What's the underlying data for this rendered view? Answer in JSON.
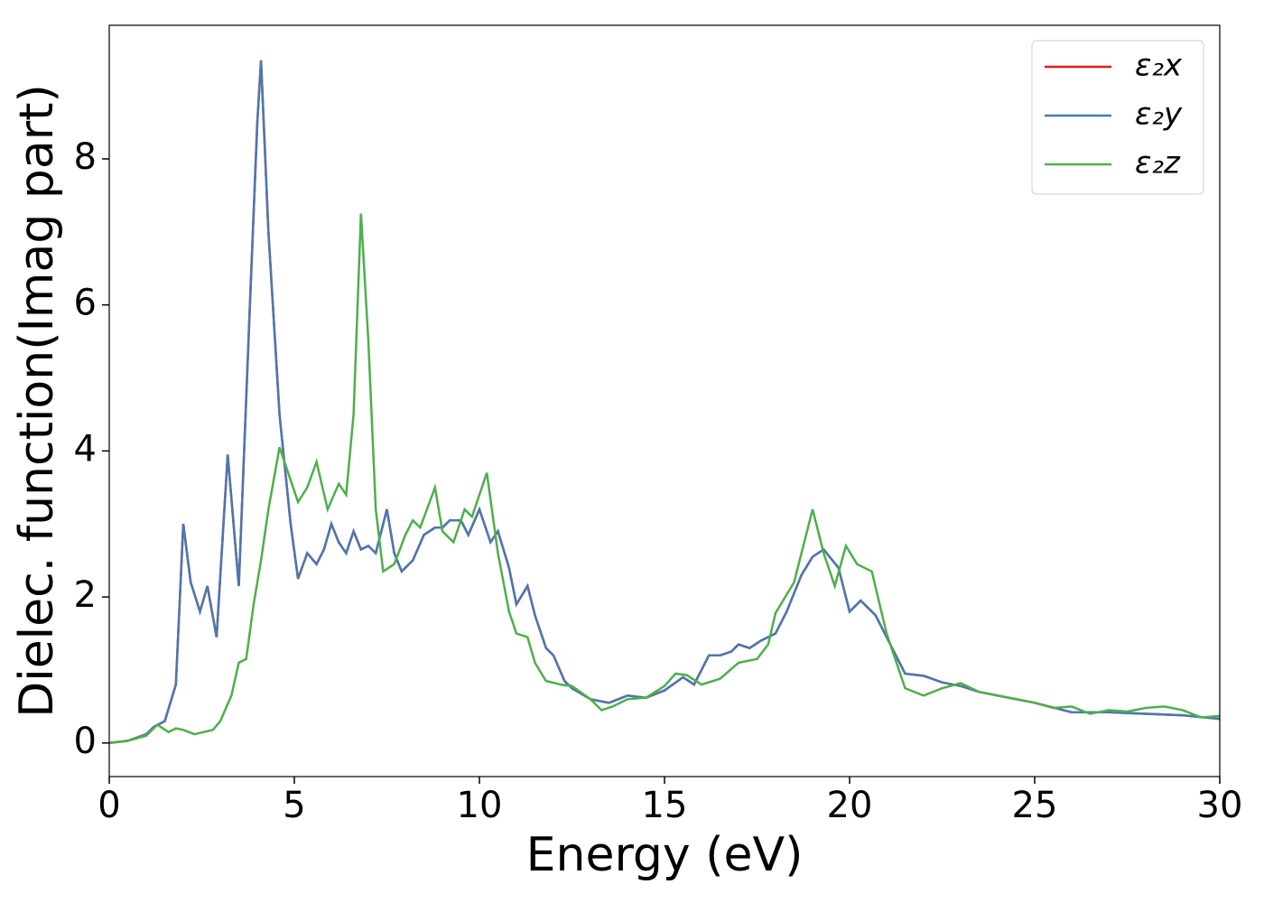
{
  "chart_data": {
    "type": "line",
    "xlabel": "Energy (eV)",
    "ylabel": "Dielec. function(Imag part)",
    "xlim": [
      0,
      30
    ],
    "ylim": [
      -0.46,
      9.83
    ],
    "xticks": [
      0,
      5,
      10,
      15,
      20,
      25,
      30
    ],
    "yticks": [
      0,
      2,
      4,
      6,
      8
    ],
    "legend": "upper right",
    "series": [
      {
        "name": "ε₂x",
        "color": "#e41a1c",
        "x": [
          0,
          0.5,
          1,
          1.2,
          1.5,
          1.8,
          2.0,
          2.2,
          2.45,
          2.65,
          2.9,
          3.2,
          3.5,
          3.8,
          4.0,
          4.1,
          4.3,
          4.6,
          4.9,
          5.1,
          5.35,
          5.6,
          5.8,
          6.0,
          6.2,
          6.4,
          6.6,
          6.8,
          7.0,
          7.2,
          7.5,
          7.7,
          7.9,
          8.2,
          8.5,
          8.8,
          9.0,
          9.2,
          9.5,
          9.7,
          10.0,
          10.3,
          10.5,
          10.8,
          11.0,
          11.3,
          11.5,
          11.8,
          12.0,
          12.3,
          12.5,
          13.0,
          13.5,
          14.0,
          14.5,
          15.0,
          15.5,
          15.8,
          16.2,
          16.5,
          16.8,
          17.0,
          17.3,
          17.6,
          18.0,
          18.3,
          18.7,
          19.0,
          19.3,
          19.7,
          20.0,
          20.3,
          20.7,
          21.0,
          21.5,
          22.0,
          22.5,
          23.0,
          23.5,
          24.0,
          25.0,
          26.0,
          27.0,
          28.0,
          29.0,
          30.0
        ],
        "values": [
          0,
          0.03,
          0.12,
          0.22,
          0.3,
          0.8,
          3.0,
          2.2,
          1.8,
          2.15,
          1.45,
          3.95,
          2.15,
          6.0,
          8.5,
          9.35,
          7.0,
          4.5,
          3.0,
          2.25,
          2.6,
          2.45,
          2.65,
          3.0,
          2.75,
          2.6,
          2.9,
          2.65,
          2.7,
          2.6,
          3.2,
          2.6,
          2.35,
          2.5,
          2.85,
          2.95,
          2.95,
          3.05,
          3.05,
          2.85,
          3.2,
          2.75,
          2.9,
          2.4,
          1.9,
          2.15,
          1.75,
          1.3,
          1.2,
          0.85,
          0.75,
          0.6,
          0.55,
          0.65,
          0.62,
          0.72,
          0.9,
          0.8,
          1.2,
          1.2,
          1.25,
          1.35,
          1.3,
          1.4,
          1.5,
          1.8,
          2.3,
          2.55,
          2.65,
          2.4,
          1.8,
          1.95,
          1.75,
          1.45,
          0.95,
          0.92,
          0.83,
          0.78,
          0.7,
          0.65,
          0.55,
          0.42,
          0.42,
          0.4,
          0.38,
          0.33
        ]
      },
      {
        "name": "ε₂y",
        "color": "#4a78b0",
        "x": [
          0,
          0.5,
          1,
          1.2,
          1.5,
          1.8,
          2.0,
          2.2,
          2.45,
          2.65,
          2.9,
          3.2,
          3.5,
          3.8,
          4.0,
          4.1,
          4.3,
          4.6,
          4.9,
          5.1,
          5.35,
          5.6,
          5.8,
          6.0,
          6.2,
          6.4,
          6.6,
          6.8,
          7.0,
          7.2,
          7.5,
          7.7,
          7.9,
          8.2,
          8.5,
          8.8,
          9.0,
          9.2,
          9.5,
          9.7,
          10.0,
          10.3,
          10.5,
          10.8,
          11.0,
          11.3,
          11.5,
          11.8,
          12.0,
          12.3,
          12.5,
          13.0,
          13.5,
          14.0,
          14.5,
          15.0,
          15.5,
          15.8,
          16.2,
          16.5,
          16.8,
          17.0,
          17.3,
          17.6,
          18.0,
          18.3,
          18.7,
          19.0,
          19.3,
          19.7,
          20.0,
          20.3,
          20.7,
          21.0,
          21.5,
          22.0,
          22.5,
          23.0,
          23.5,
          24.0,
          25.0,
          26.0,
          27.0,
          28.0,
          29.0,
          30.0
        ],
        "values": [
          0,
          0.03,
          0.12,
          0.22,
          0.3,
          0.8,
          3.0,
          2.2,
          1.8,
          2.15,
          1.45,
          3.95,
          2.15,
          6.0,
          8.5,
          9.35,
          7.0,
          4.5,
          3.0,
          2.25,
          2.6,
          2.45,
          2.65,
          3.0,
          2.75,
          2.6,
          2.9,
          2.65,
          2.7,
          2.6,
          3.2,
          2.6,
          2.35,
          2.5,
          2.85,
          2.95,
          2.95,
          3.05,
          3.05,
          2.85,
          3.2,
          2.75,
          2.9,
          2.4,
          1.9,
          2.15,
          1.75,
          1.3,
          1.2,
          0.85,
          0.75,
          0.6,
          0.55,
          0.65,
          0.62,
          0.72,
          0.9,
          0.8,
          1.2,
          1.2,
          1.25,
          1.35,
          1.3,
          1.4,
          1.5,
          1.8,
          2.3,
          2.55,
          2.65,
          2.4,
          1.8,
          1.95,
          1.75,
          1.45,
          0.95,
          0.92,
          0.83,
          0.78,
          0.7,
          0.65,
          0.55,
          0.42,
          0.42,
          0.4,
          0.38,
          0.33
        ]
      },
      {
        "name": "ε₂z",
        "color": "#4daf4a",
        "x": [
          0,
          0.5,
          1,
          1.3,
          1.6,
          1.8,
          2.0,
          2.3,
          2.8,
          3.0,
          3.3,
          3.5,
          3.7,
          3.9,
          4.1,
          4.3,
          4.6,
          4.9,
          5.1,
          5.35,
          5.6,
          5.9,
          6.2,
          6.4,
          6.6,
          6.8,
          7.0,
          7.2,
          7.4,
          7.7,
          8.0,
          8.2,
          8.4,
          8.8,
          9.0,
          9.3,
          9.6,
          9.8,
          10.2,
          10.5,
          10.8,
          11.0,
          11.3,
          11.5,
          11.8,
          12.2,
          12.5,
          13.0,
          13.3,
          13.6,
          14.0,
          14.5,
          15.0,
          15.3,
          15.6,
          16.0,
          16.5,
          17.0,
          17.5,
          17.8,
          18.0,
          18.5,
          19.0,
          19.3,
          19.6,
          19.9,
          20.2,
          20.6,
          21.0,
          21.5,
          22.0,
          22.5,
          23.0,
          23.5,
          24.0,
          25.0,
          25.5,
          26.0,
          26.5,
          27.0,
          27.5,
          28.0,
          28.5,
          29.0,
          29.5,
          30.0
        ],
        "values": [
          0,
          0.03,
          0.1,
          0.25,
          0.15,
          0.2,
          0.18,
          0.12,
          0.18,
          0.3,
          0.65,
          1.1,
          1.15,
          1.9,
          2.5,
          3.2,
          4.05,
          3.6,
          3.3,
          3.5,
          3.85,
          3.2,
          3.55,
          3.4,
          4.5,
          7.25,
          5.5,
          3.2,
          2.35,
          2.45,
          2.85,
          3.05,
          2.95,
          3.5,
          2.9,
          2.75,
          3.2,
          3.1,
          3.7,
          2.6,
          1.8,
          1.5,
          1.45,
          1.1,
          0.85,
          0.8,
          0.78,
          0.6,
          0.45,
          0.5,
          0.6,
          0.62,
          0.78,
          0.95,
          0.93,
          0.8,
          0.88,
          1.1,
          1.15,
          1.35,
          1.78,
          2.2,
          3.2,
          2.6,
          2.15,
          2.7,
          2.45,
          2.35,
          1.5,
          0.75,
          0.65,
          0.75,
          0.82,
          0.7,
          0.65,
          0.55,
          0.48,
          0.5,
          0.4,
          0.45,
          0.43,
          0.48,
          0.5,
          0.45,
          0.35,
          0.37
        ]
      }
    ]
  }
}
